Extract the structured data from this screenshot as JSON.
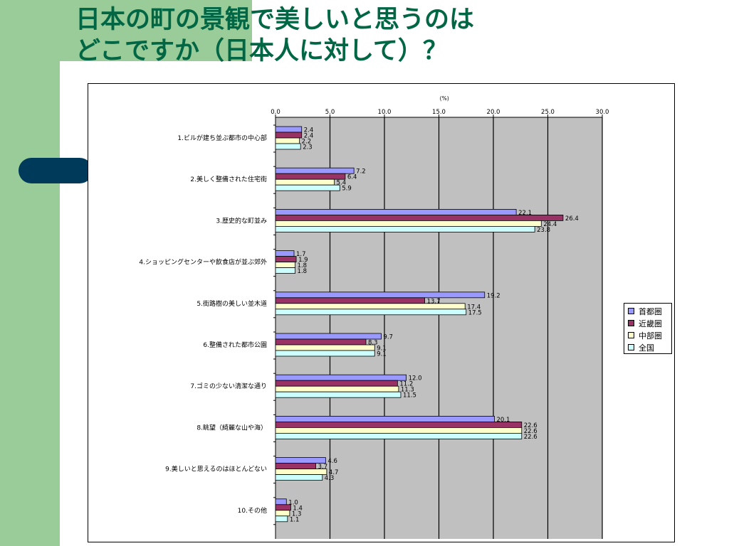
{
  "slide": {
    "title": "日本の町の景観で美しいと思うのは\nどこですか（日本人に対して）？"
  },
  "legend": {
    "items": [
      {
        "label": "首都圏",
        "color": "#9999ff"
      },
      {
        "label": "近畿圏",
        "color": "#993366"
      },
      {
        "label": "中部圏",
        "color": "#ffffcc"
      },
      {
        "label": "全国",
        "color": "#ccffff"
      }
    ]
  },
  "chart_data": {
    "type": "bar",
    "orientation": "horizontal",
    "axis_unit": "(%)",
    "xlim": [
      0,
      30
    ],
    "ticks": [
      "0.0",
      "5.0",
      "10.0",
      "15.0",
      "20.0",
      "25.0",
      "30.0"
    ],
    "tick_values": [
      0,
      5,
      10,
      15,
      20,
      25,
      30
    ],
    "grid": true,
    "legend_position": "right",
    "plot_background": "#c0c0c0",
    "categories": [
      "1.ビルが建ち並ぶ都市の中心部",
      "2.美しく整備された住宅街",
      "3.歴史的な町並み",
      "4.ショッピングセンターや飲食店が並ぶ郊外",
      "5.街路樹の美しい並木道",
      "6.整備された都市公園",
      "7.ゴミの少ない清潔な通り",
      "8.眺望（綺麗な山や海）",
      "9.美しいと思えるのはほとんどない",
      "10.その他"
    ],
    "series": [
      {
        "name": "首都圏",
        "color": "#9999ff",
        "values": [
          2.4,
          7.2,
          22.1,
          1.7,
          19.2,
          9.7,
          12.0,
          20.1,
          4.6,
          1.0
        ],
        "labels": [
          "2.4",
          "7.2",
          "22.1",
          "1.7",
          "19.2",
          "9.7",
          "12.0",
          "20.1",
          "4.6",
          "1.0"
        ]
      },
      {
        "name": "近畿圏",
        "color": "#993366",
        "values": [
          2.4,
          6.4,
          26.4,
          1.9,
          13.7,
          8.3,
          11.2,
          22.6,
          3.7,
          1.4
        ],
        "labels": [
          "2.4",
          "6.4",
          "26.4",
          "1.9",
          "13.7",
          "8.3",
          "11.2",
          "22.6",
          "3.7",
          "1.4"
        ]
      },
      {
        "name": "中部圏",
        "color": "#ffffcc",
        "values": [
          2.2,
          5.4,
          24.4,
          1.8,
          17.4,
          9.1,
          11.3,
          22.6,
          4.7,
          1.3
        ],
        "labels": [
          "2.2",
          "5.4",
          "24.4",
          "1.8",
          "17.4",
          "9.1",
          "11.3",
          "22.6",
          "4.7",
          "1.3"
        ]
      },
      {
        "name": "全国",
        "color": "#ccffff",
        "values": [
          2.3,
          5.9,
          23.8,
          1.8,
          17.5,
          9.1,
          11.5,
          22.6,
          4.3,
          1.1
        ],
        "labels": [
          "2.3",
          "5.9",
          "23.8",
          "1.8",
          "17.5",
          "9.1",
          "11.5",
          "22.6",
          "4.3",
          "1.1"
        ]
      }
    ]
  }
}
